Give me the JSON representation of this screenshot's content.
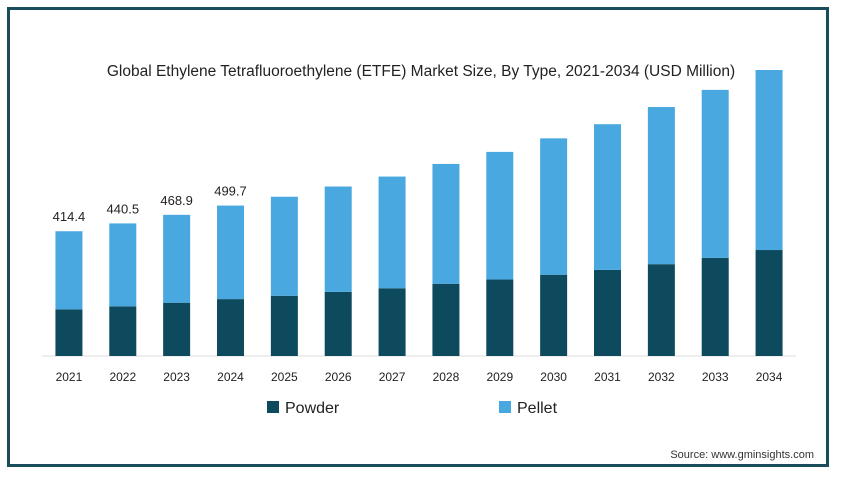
{
  "chart_data": {
    "type": "bar",
    "stacked": true,
    "title": "Global Ethylene Tetrafluoroethylene (ETFE) Market Size, By Type, 2021-2034 (USD Million)",
    "categories": [
      "2021",
      "2022",
      "2023",
      "2024",
      "2025",
      "2026",
      "2027",
      "2028",
      "2029",
      "2030",
      "2031",
      "2032",
      "2033",
      "2034"
    ],
    "series": [
      {
        "name": "Powder",
        "color": "#0d4a5e",
        "values": [
          155,
          165,
          177,
          189,
          200,
          213,
          225,
          240,
          254,
          270,
          286,
          305,
          326,
          352
        ]
      },
      {
        "name": "Pellet",
        "color": "#4aa8e0",
        "values": [
          259.4,
          275.5,
          291.9,
          310.7,
          329,
          350,
          371,
          398,
          424,
          453,
          484,
          522,
          558,
          598
        ]
      }
    ],
    "totals_labels": [
      "414.4",
      "440.5",
      "468.9",
      "499.7"
    ],
    "ylim": [
      0,
      950
    ],
    "legend_position": "bottom",
    "grid": false,
    "source": "Source: www.gminsights.com"
  }
}
